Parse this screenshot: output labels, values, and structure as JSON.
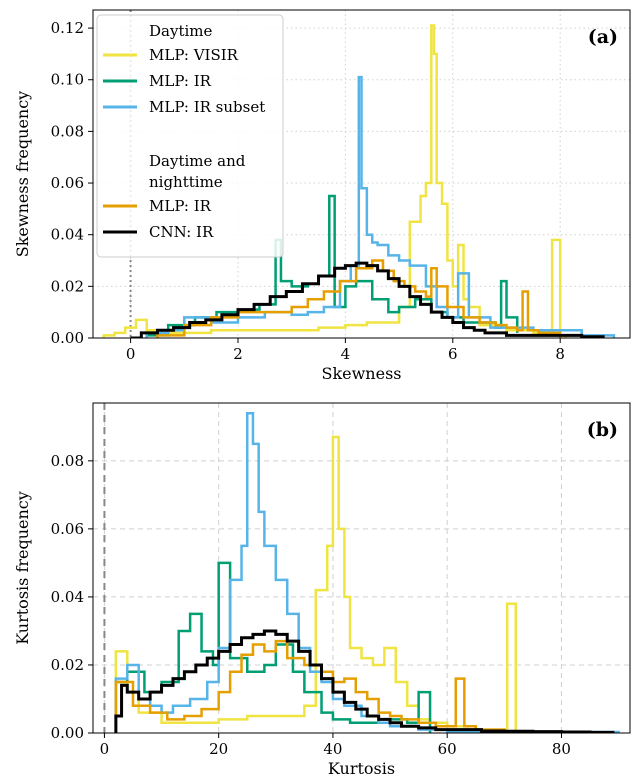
{
  "chart_data": [
    {
      "type": "line",
      "panel_label": "(a)",
      "xlabel": "Skewness",
      "ylabel": "Skewness frequency",
      "xlim": [
        -0.7,
        9.3
      ],
      "ylim": [
        0,
        0.127
      ],
      "xticks": [
        0,
        2,
        4,
        6,
        8
      ],
      "xtick_labels": [
        "0",
        "2",
        "4",
        "6",
        "8"
      ],
      "yticks": [
        0,
        0.02,
        0.04,
        0.06,
        0.08,
        0.1,
        0.12
      ],
      "ytick_labels": [
        "0.00",
        "0.02",
        "0.04",
        "0.06",
        "0.08",
        "0.10",
        "0.12"
      ],
      "grid": "dotted",
      "reference_line": {
        "x": 0,
        "style": "dotted"
      },
      "legend": {
        "placement": "top-left",
        "groups": [
          {
            "title": "Daytime",
            "entries": [
              "MLP: VISIR",
              "MLP: IR",
              "MLP: IR subset"
            ]
          },
          {
            "title": "Daytime and nighttime",
            "title_lines": [
              "Daytime and",
              "nighttime"
            ],
            "entries": [
              "MLP: IR",
              "CNN: IR"
            ]
          }
        ]
      },
      "series": [
        {
          "name": "MLP: VISIR",
          "color": "#f0e442",
          "width": 2.5,
          "x": [
            -0.5,
            -0.3,
            -0.1,
            0.1,
            0.3,
            0.5,
            1,
            1.5,
            2,
            2.5,
            3,
            3.5,
            4,
            4.4,
            4.8,
            5.0,
            5.2,
            5.4,
            5.5,
            5.6,
            5.65,
            5.7,
            5.8,
            5.9,
            6.0,
            6.1,
            6.2,
            6.3,
            6.5,
            7,
            7.5,
            7.8,
            7.85,
            7.95,
            8.0,
            8.1
          ],
          "y": [
            0.001,
            0.002,
            0.004,
            0.007,
            0.003,
            0.002,
            0.002,
            0.003,
            0.003,
            0.003,
            0.003,
            0.004,
            0.005,
            0.006,
            0.006,
            0.012,
            0.045,
            0.055,
            0.06,
            0.121,
            0.11,
            0.06,
            0.052,
            0.03,
            0.02,
            0.036,
            0.015,
            0.012,
            0.005,
            0.003,
            0.002,
            0.001,
            0.038,
            0.038,
            0.001,
            0
          ]
        },
        {
          "name": "MLP: IR",
          "color": "#009e73",
          "width": 2.5,
          "x": [
            0.3,
            0.7,
            1.2,
            1.6,
            2.0,
            2.4,
            2.7,
            2.8,
            3.0,
            3.3,
            3.5,
            3.7,
            3.8,
            4.0,
            4.2,
            4.5,
            4.8,
            5.0,
            5.3,
            5.6,
            5.9,
            6.2,
            6.5,
            6.8,
            6.9,
            7.0,
            7.2
          ],
          "y": [
            0.001,
            0.005,
            0.008,
            0.01,
            0.011,
            0.013,
            0.038,
            0.022,
            0.02,
            0.021,
            0.024,
            0.055,
            0.012,
            0.02,
            0.022,
            0.015,
            0.01,
            0.012,
            0.015,
            0.01,
            0.008,
            0.006,
            0.006,
            0.004,
            0.022,
            0.008,
            0.002
          ]
        },
        {
          "name": "MLP: IR subset",
          "color": "#56b4e9",
          "width": 2.5,
          "x": [
            0.3,
            0.7,
            1.0,
            1.5,
            2.0,
            2.5,
            3.0,
            3.3,
            3.6,
            3.9,
            4.1,
            4.25,
            4.3,
            4.4,
            4.5,
            4.6,
            4.8,
            5.0,
            5.2,
            5.5,
            5.7,
            5.9,
            6.1,
            6.3,
            6.7,
            7.5,
            8.4,
            8.7,
            9.0
          ],
          "y": [
            0.002,
            0.003,
            0.008,
            0.006,
            0.008,
            0.01,
            0.009,
            0.01,
            0.012,
            0.022,
            0.028,
            0.101,
            0.058,
            0.04,
            0.037,
            0.036,
            0.032,
            0.03,
            0.028,
            0.02,
            0.012,
            0.008,
            0.025,
            0.008,
            0.004,
            0.003,
            0.001,
            0.001,
            0
          ]
        },
        {
          "name": "MLP: IR",
          "color": "#e69f00",
          "width": 2.5,
          "x": [
            0.5,
            1.0,
            1.5,
            2.0,
            2.5,
            3.0,
            3.3,
            3.6,
            3.9,
            4.2,
            4.5,
            4.7,
            4.9,
            5.1,
            5.3,
            5.5,
            5.6,
            5.7,
            5.9,
            6.2,
            6.5,
            6.8,
            7.0,
            7.2,
            7.3,
            7.4,
            7.6,
            8.0
          ],
          "y": [
            0.001,
            0.005,
            0.008,
            0.01,
            0.01,
            0.012,
            0.015,
            0.018,
            0.022,
            0.027,
            0.03,
            0.026,
            0.022,
            0.02,
            0.018,
            0.016,
            0.027,
            0.02,
            0.012,
            0.008,
            0.006,
            0.005,
            0.004,
            0.003,
            0.018,
            0.003,
            0.002,
            0
          ]
        },
        {
          "name": "CNN: IR",
          "color": "#000000",
          "width": 3,
          "x": [
            0,
            0.2,
            0.5,
            0.8,
            1.1,
            1.4,
            1.7,
            2.0,
            2.3,
            2.6,
            2.9,
            3.2,
            3.5,
            3.8,
            4.0,
            4.2,
            4.4,
            4.6,
            4.8,
            5.0,
            5.2,
            5.4,
            5.6,
            5.8,
            6.0,
            6.2,
            6.4,
            6.6,
            6.8,
            7.0,
            7.3,
            7.6,
            8.0,
            8.4,
            8.8
          ],
          "y": [
            0,
            0.002,
            0.003,
            0.004,
            0.006,
            0.007,
            0.009,
            0.011,
            0.013,
            0.016,
            0.018,
            0.021,
            0.024,
            0.027,
            0.028,
            0.029,
            0.028,
            0.026,
            0.023,
            0.02,
            0.016,
            0.013,
            0.01,
            0.008,
            0.006,
            0.004,
            0.003,
            0.002,
            0.002,
            0.001,
            0.001,
            0.001,
            0.001,
            0.0005,
            0
          ]
        }
      ]
    },
    {
      "type": "line",
      "panel_label": "(b)",
      "xlabel": "Kurtosis",
      "ylabel": "Kurtosis frequency",
      "xlim": [
        -2,
        92
      ],
      "ylim": [
        0,
        0.097
      ],
      "xticks": [
        0,
        20,
        40,
        60,
        80
      ],
      "xtick_labels": [
        "0",
        "20",
        "40",
        "60",
        "80"
      ],
      "yticks": [
        0,
        0.02,
        0.04,
        0.06,
        0.08
      ],
      "ytick_labels": [
        "0.00",
        "0.02",
        "0.04",
        "0.06",
        "0.08"
      ],
      "grid": "dashed",
      "reference_line": {
        "x": 0,
        "style": "dashed"
      },
      "series": [
        {
          "name": "MLP: VISIR",
          "color": "#f0e442",
          "width": 2.5,
          "x": [
            2,
            4,
            6,
            10,
            15,
            20,
            25,
            30,
            35,
            37,
            39,
            40,
            41,
            42,
            43,
            45,
            47,
            49,
            51,
            53,
            55,
            57,
            60,
            65,
            70,
            70.5,
            71,
            72
          ],
          "y": [
            0.024,
            0.012,
            0.006,
            0.003,
            0.003,
            0.004,
            0.005,
            0.005,
            0.008,
            0.042,
            0.055,
            0.087,
            0.06,
            0.04,
            0.025,
            0.022,
            0.02,
            0.025,
            0.015,
            0.008,
            0.004,
            0.003,
            0.002,
            0.001,
            0.001,
            0.038,
            0.038,
            0
          ]
        },
        {
          "name": "MLP: IR",
          "color": "#009e73",
          "width": 2.5,
          "x": [
            2,
            4,
            7,
            10,
            13,
            15,
            17,
            19,
            20,
            22,
            25,
            28,
            30,
            33,
            35,
            38,
            40,
            43,
            47,
            50,
            53,
            55,
            57
          ],
          "y": [
            0.015,
            0.018,
            0.012,
            0.015,
            0.03,
            0.035,
            0.024,
            0.02,
            0.05,
            0.022,
            0.018,
            0.02,
            0.026,
            0.018,
            0.012,
            0.006,
            0.004,
            0.003,
            0.003,
            0.004,
            0.003,
            0.012,
            0
          ]
        },
        {
          "name": "MLP: IR subset",
          "color": "#56b4e9",
          "width": 2.5,
          "x": [
            2,
            4,
            6,
            8,
            10,
            12,
            15,
            18,
            20,
            22,
            24,
            25,
            26,
            27,
            28,
            30,
            32,
            34,
            36,
            38,
            40,
            42,
            45,
            48,
            50,
            55,
            60,
            65,
            70,
            80,
            88,
            90
          ],
          "y": [
            0.016,
            0.02,
            0.01,
            0.008,
            0.006,
            0.008,
            0.01,
            0.015,
            0.025,
            0.045,
            0.055,
            0.094,
            0.085,
            0.065,
            0.055,
            0.045,
            0.035,
            0.025,
            0.018,
            0.015,
            0.01,
            0.008,
            0.005,
            0.003,
            0.002,
            0.001,
            0.0005,
            0.0005,
            0.0003,
            0.0003,
            0.0003,
            0
          ]
        },
        {
          "name": "MLP: IR",
          "color": "#e69f00",
          "width": 2.5,
          "x": [
            2,
            5,
            8,
            11,
            14,
            17,
            20,
            22,
            24,
            26,
            28,
            30,
            32,
            35,
            38,
            40,
            42,
            44,
            46,
            48,
            50,
            52,
            55,
            58,
            60,
            61.5,
            62,
            63,
            65,
            70,
            75,
            80
          ],
          "y": [
            0.015,
            0.008,
            0.006,
            0.004,
            0.005,
            0.007,
            0.012,
            0.018,
            0.023,
            0.026,
            0.024,
            0.027,
            0.022,
            0.02,
            0.018,
            0.015,
            0.016,
            0.012,
            0.01,
            0.006,
            0.005,
            0.004,
            0.003,
            0.002,
            0.002,
            0.016,
            0.016,
            0.002,
            0.001,
            0.0005,
            0.0003,
            0
          ]
        },
        {
          "name": "CNN: IR",
          "color": "#000000",
          "width": 3,
          "x": [
            2,
            3,
            4,
            6,
            8,
            10,
            12,
            14,
            16,
            18,
            20,
            22,
            24,
            26,
            28,
            30,
            32,
            34,
            36,
            38,
            40,
            42,
            44,
            46,
            48,
            50,
            52,
            55,
            58,
            62,
            66,
            70,
            75,
            80,
            85,
            89
          ],
          "y": [
            0.005,
            0.014,
            0.012,
            0.01,
            0.012,
            0.014,
            0.016,
            0.018,
            0.02,
            0.022,
            0.024,
            0.026,
            0.028,
            0.029,
            0.03,
            0.029,
            0.027,
            0.024,
            0.02,
            0.016,
            0.012,
            0.009,
            0.007,
            0.005,
            0.004,
            0.003,
            0.002,
            0.0015,
            0.001,
            0.001,
            0.0006,
            0.0005,
            0.0004,
            0.0003,
            0.0002,
            0
          ]
        }
      ]
    }
  ]
}
